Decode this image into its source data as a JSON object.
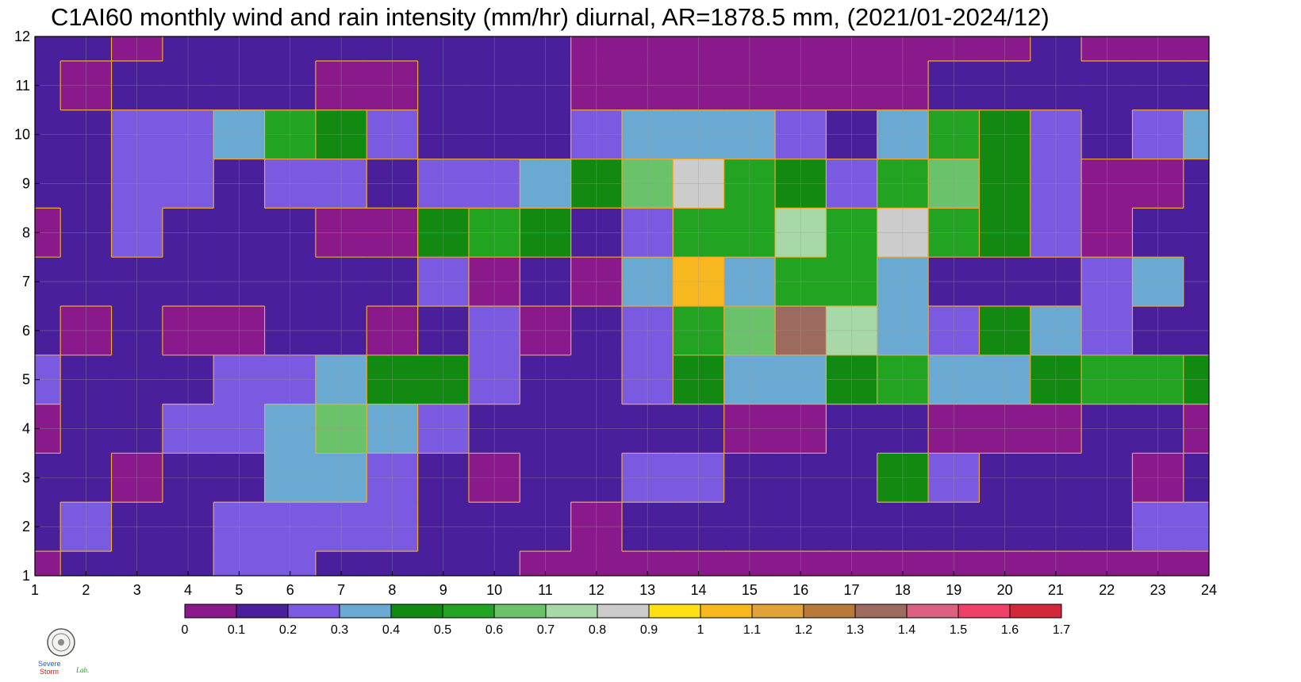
{
  "title": "C1AI60 monthly wind and rain intensity (mm/hr) diurnal, AR=1878.5 mm, (2021/01-2024/12)",
  "logo": {
    "text_top": "Severe",
    "text_bottom": "Storm",
    "text_lab": "Lab."
  },
  "chart_data": {
    "type": "heatmap",
    "title": "C1AI60 monthly wind and rain intensity (mm/hr) diurnal, AR=1878.5 mm, (2021/01-2024/12)",
    "x": [
      1,
      2,
      3,
      4,
      5,
      6,
      7,
      8,
      9,
      10,
      11,
      12,
      13,
      14,
      15,
      16,
      17,
      18,
      19,
      20,
      21,
      22,
      23,
      24
    ],
    "y": [
      1,
      2,
      3,
      4,
      5,
      6,
      7,
      8,
      9,
      10,
      11,
      12
    ],
    "xlim": [
      1,
      24
    ],
    "ylim": [
      1,
      12
    ],
    "xticks": [
      "1",
      "2",
      "3",
      "4",
      "5",
      "6",
      "7",
      "8",
      "9",
      "10",
      "11",
      "12",
      "13",
      "14",
      "15",
      "16",
      "17",
      "18",
      "19",
      "20",
      "21",
      "22",
      "23",
      "24"
    ],
    "yticks": [
      "1",
      "2",
      "3",
      "4",
      "5",
      "6",
      "7",
      "8",
      "9",
      "10",
      "11",
      "12"
    ],
    "grid": true,
    "z": [
      [
        0.05,
        0.15,
        0.15,
        0.15,
        0.25,
        0.25,
        0.15,
        0.15,
        0.15,
        0.12,
        0.05,
        0.05,
        0.05,
        0.05,
        0.05,
        0.05,
        0.05,
        0.05,
        0.05,
        0.05,
        0.05,
        0.05,
        0.05,
        0.05
      ],
      [
        0.15,
        0.25,
        0.15,
        0.15,
        0.25,
        0.25,
        0.25,
        0.25,
        0.15,
        0.15,
        0.15,
        0.05,
        0.15,
        0.15,
        0.15,
        0.15,
        0.15,
        0.15,
        0.15,
        0.15,
        0.15,
        0.15,
        0.25,
        0.25
      ],
      [
        0.15,
        0.15,
        0.05,
        0.15,
        0.15,
        0.35,
        0.35,
        0.25,
        0.15,
        0.05,
        0.15,
        0.15,
        0.25,
        0.25,
        0.15,
        0.15,
        0.15,
        0.45,
        0.25,
        0.15,
        0.15,
        0.15,
        0.05,
        0.15
      ],
      [
        0.05,
        0.15,
        0.15,
        0.25,
        0.25,
        0.35,
        0.65,
        0.35,
        0.25,
        0.15,
        0.15,
        0.15,
        0.15,
        0.15,
        0.05,
        0.05,
        0.15,
        0.15,
        0.05,
        0.05,
        0.05,
        0.15,
        0.15,
        0.05
      ],
      [
        0.25,
        0.15,
        0.15,
        0.15,
        0.25,
        0.25,
        0.35,
        0.45,
        0.45,
        0.25,
        0.15,
        0.15,
        0.25,
        0.45,
        0.35,
        0.35,
        0.45,
        0.55,
        0.35,
        0.35,
        0.45,
        0.55,
        0.55,
        0.45
      ],
      [
        0.15,
        0.05,
        0.15,
        0.05,
        0.05,
        0.15,
        0.15,
        0.05,
        0.15,
        0.25,
        0.05,
        0.15,
        0.25,
        0.55,
        0.65,
        1.35,
        0.75,
        0.35,
        0.25,
        0.45,
        0.35,
        0.25,
        0.15,
        0.15
      ],
      [
        0.15,
        0.15,
        0.15,
        0.15,
        0.15,
        0.15,
        0.15,
        0.15,
        0.25,
        0.05,
        0.15,
        0.05,
        0.35,
        1.05,
        0.35,
        0.55,
        0.55,
        0.35,
        0.15,
        0.15,
        0.15,
        0.25,
        0.35,
        0.15
      ],
      [
        0.05,
        0.15,
        0.25,
        0.15,
        0.15,
        0.15,
        0.05,
        0.05,
        0.45,
        0.55,
        0.45,
        0.15,
        0.25,
        0.55,
        0.55,
        0.75,
        0.55,
        0.85,
        0.55,
        0.45,
        0.25,
        0.05,
        0.15,
        0.15
      ],
      [
        0.15,
        0.15,
        0.25,
        0.25,
        0.15,
        0.25,
        0.25,
        0.15,
        0.25,
        0.25,
        0.35,
        0.45,
        0.65,
        0.85,
        0.55,
        0.45,
        0.25,
        0.55,
        0.65,
        0.45,
        0.25,
        0.05,
        0.05,
        0.15
      ],
      [
        0.15,
        0.15,
        0.25,
        0.25,
        0.35,
        0.55,
        0.45,
        0.25,
        0.15,
        0.15,
        0.15,
        0.25,
        0.35,
        0.35,
        0.35,
        0.25,
        0.15,
        0.35,
        0.55,
        0.45,
        0.25,
        0.15,
        0.25,
        0.35
      ],
      [
        0.15,
        0.05,
        0.15,
        0.15,
        0.15,
        0.15,
        0.05,
        0.05,
        0.15,
        0.15,
        0.15,
        0.05,
        0.05,
        0.05,
        0.05,
        0.05,
        0.05,
        0.05,
        0.15,
        0.15,
        0.15,
        0.15,
        0.15,
        0.15
      ],
      [
        0.15,
        0.15,
        0.05,
        0.15,
        0.15,
        0.15,
        0.15,
        0.15,
        0.15,
        0.15,
        0.15,
        0.05,
        0.05,
        0.05,
        0.05,
        0.05,
        0.05,
        0.05,
        0.05,
        0.05,
        0.15,
        0.05,
        0.05,
        0.05
      ]
    ],
    "colorbar": {
      "levels": [
        "0",
        "0.1",
        "0.2",
        "0.3",
        "0.4",
        "0.5",
        "0.6",
        "0.7",
        "0.8",
        "0.9",
        "1",
        "1.1",
        "1.2",
        "1.3",
        "1.4",
        "1.5",
        "1.6",
        "1.7"
      ],
      "colors": [
        "#8a1a8c",
        "#4a1f9c",
        "#7a5ae0",
        "#6aaad2",
        "#128a12",
        "#22a422",
        "#6ac26a",
        "#a8d8a8",
        "#cccccc",
        "#ffe014",
        "#f6b81e",
        "#e2a238",
        "#b87a3a",
        "#9c6a5e",
        "#dc6080",
        "#f04068",
        "#d2283c"
      ]
    },
    "contour_line_color": "#f0a830"
  }
}
